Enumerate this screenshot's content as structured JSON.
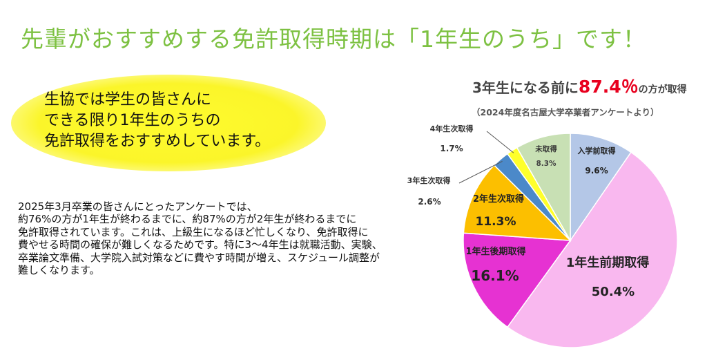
{
  "headline": "先輩がおすすめする免許取得時期は「1年生のうち」です！",
  "bubble": {
    "lines": [
      "生協では学生の皆さんに",
      "できる限り1年生のうちの",
      "免許取得をおすすめしています。"
    ]
  },
  "body": {
    "lines": [
      "2025年3月卒業の皆さんにとったアンケートでは、",
      "約76%の方が1年生が終わるまでに、約87%の方が2年生が終わるまでに",
      "免許取得されています。これは、上級生になるほど忙しくなり、免許取得に",
      "費やせる時間の確保が難しくなるためです。特に3～4年生は就職活動、実験、",
      "卒業論文準備、大学院入試対策などに費やす時間が増え、スケジュール調整が",
      "難しくなります。"
    ]
  },
  "chart_data": {
    "type": "pie",
    "title_prefix": "3年生になる前に",
    "title_value": "87.4％",
    "title_suffix": "の方が取得",
    "subtitle": "（2024年度名古屋大学卒業者アンケートより）",
    "start": "12 o'clock, clockwise",
    "slices": [
      {
        "label": "入学前取得",
        "value": 9.6,
        "display": "9.6%",
        "color": "#b4c7e7"
      },
      {
        "label": "1年生前期取得",
        "value": 50.4,
        "display": "50.4%",
        "color": "#f9b8ef"
      },
      {
        "label": "1年生後期取得",
        "value": 16.1,
        "display": "16.1%",
        "color": "#e632d2"
      },
      {
        "label": "2年生次取得",
        "value": 11.3,
        "display": "11.3%",
        "color": "#fcbf00"
      },
      {
        "label": "3年生次取得",
        "value": 2.6,
        "display": "2.6%",
        "color": "#4b89c9"
      },
      {
        "label": "4年生次取得",
        "value": 1.7,
        "display": "1.7%",
        "color": "#ffff2a"
      },
      {
        "label": "未取得",
        "value": 8.3,
        "display": "8.3%",
        "color": "#c8e0b4"
      }
    ]
  }
}
